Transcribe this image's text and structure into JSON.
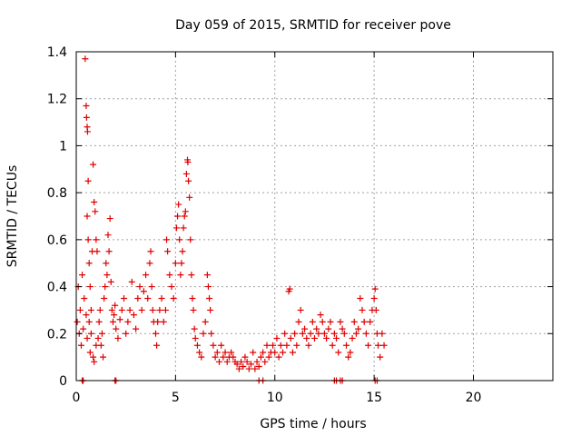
{
  "chart_data": {
    "type": "scatter",
    "title": "Day 059 of 2015, SRMTID for receiver pove",
    "xlabel": "GPS time / hours",
    "ylabel": "SRMTID / TECUs",
    "xlim": [
      0,
      24
    ],
    "ylim": [
      0,
      1.4
    ],
    "xticks": [
      0,
      5,
      10,
      15,
      20
    ],
    "yticks": [
      0,
      0.2,
      0.4,
      0.6,
      0.8,
      1,
      1.2,
      1.4
    ],
    "grid": true,
    "marker": "+",
    "series_color": "#e00000",
    "points": [
      [
        0.05,
        0.25
      ],
      [
        0.1,
        0.4
      ],
      [
        0.15,
        0.2
      ],
      [
        0.2,
        0.3
      ],
      [
        0.25,
        0.15
      ],
      [
        0.3,
        0.45
      ],
      [
        0.35,
        0.22
      ],
      [
        0.4,
        0.35
      ],
      [
        0.45,
        1.37
      ],
      [
        0.5,
        1.17
      ],
      [
        0.52,
        1.12
      ],
      [
        0.55,
        1.08
      ],
      [
        0.57,
        1.06
      ],
      [
        0.6,
        0.85
      ],
      [
        0.55,
        0.7
      ],
      [
        0.6,
        0.6
      ],
      [
        0.65,
        0.5
      ],
      [
        0.7,
        0.4
      ],
      [
        0.75,
        0.3
      ],
      [
        0.8,
        0.55
      ],
      [
        0.85,
        0.92
      ],
      [
        0.9,
        0.76
      ],
      [
        0.95,
        0.72
      ],
      [
        1.0,
        0.6
      ],
      [
        1.05,
        0.55
      ],
      [
        0.5,
        0.28
      ],
      [
        0.55,
        0.18
      ],
      [
        0.65,
        0.25
      ],
      [
        0.7,
        0.12
      ],
      [
        0.75,
        0.2
      ],
      [
        0.85,
        0.1
      ],
      [
        0.9,
        0.08
      ],
      [
        1.0,
        0.15
      ],
      [
        1.1,
        0.18
      ],
      [
        1.15,
        0.25
      ],
      [
        1.2,
        0.3
      ],
      [
        1.25,
        0.15
      ],
      [
        1.3,
        0.2
      ],
      [
        1.35,
        0.1
      ],
      [
        1.4,
        0.35
      ],
      [
        1.45,
        0.4
      ],
      [
        1.5,
        0.5
      ],
      [
        1.55,
        0.45
      ],
      [
        1.6,
        0.62
      ],
      [
        1.65,
        0.55
      ],
      [
        1.7,
        0.69
      ],
      [
        1.75,
        0.42
      ],
      [
        1.8,
        0.3
      ],
      [
        1.85,
        0.25
      ],
      [
        1.9,
        0.28
      ],
      [
        1.95,
        0.32
      ],
      [
        2.0,
        0.22
      ],
      [
        2.1,
        0.18
      ],
      [
        2.2,
        0.26
      ],
      [
        2.3,
        0.3
      ],
      [
        2.4,
        0.35
      ],
      [
        2.5,
        0.2
      ],
      [
        2.6,
        0.25
      ],
      [
        2.7,
        0.3
      ],
      [
        2.8,
        0.42
      ],
      [
        2.9,
        0.28
      ],
      [
        3.0,
        0.22
      ],
      [
        3.1,
        0.35
      ],
      [
        3.2,
        0.4
      ],
      [
        3.3,
        0.3
      ],
      [
        3.4,
        0.38
      ],
      [
        3.5,
        0.45
      ],
      [
        3.6,
        0.35
      ],
      [
        3.7,
        0.5
      ],
      [
        3.75,
        0.55
      ],
      [
        3.8,
        0.4
      ],
      [
        3.85,
        0.3
      ],
      [
        3.9,
        0.25
      ],
      [
        4.0,
        0.2
      ],
      [
        4.05,
        0.15
      ],
      [
        4.1,
        0.25
      ],
      [
        4.2,
        0.3
      ],
      [
        4.3,
        0.35
      ],
      [
        4.4,
        0.25
      ],
      [
        4.5,
        0.3
      ],
      [
        4.55,
        0.6
      ],
      [
        4.6,
        0.55
      ],
      [
        4.7,
        0.45
      ],
      [
        4.8,
        0.4
      ],
      [
        4.9,
        0.35
      ],
      [
        5.0,
        0.5
      ],
      [
        5.05,
        0.65
      ],
      [
        5.1,
        0.7
      ],
      [
        5.15,
        0.75
      ],
      [
        5.2,
        0.6
      ],
      [
        5.25,
        0.45
      ],
      [
        5.3,
        0.5
      ],
      [
        5.35,
        0.55
      ],
      [
        5.4,
        0.65
      ],
      [
        5.45,
        0.7
      ],
      [
        5.5,
        0.72
      ],
      [
        5.55,
        0.88
      ],
      [
        5.6,
        0.94
      ],
      [
        5.62,
        0.93
      ],
      [
        5.65,
        0.85
      ],
      [
        5.7,
        0.78
      ],
      [
        5.75,
        0.6
      ],
      [
        5.8,
        0.45
      ],
      [
        5.85,
        0.35
      ],
      [
        5.9,
        0.3
      ],
      [
        5.95,
        0.22
      ],
      [
        6.0,
        0.18
      ],
      [
        6.1,
        0.15
      ],
      [
        6.2,
        0.12
      ],
      [
        6.3,
        0.1
      ],
      [
        6.4,
        0.2
      ],
      [
        6.5,
        0.25
      ],
      [
        6.6,
        0.45
      ],
      [
        6.65,
        0.4
      ],
      [
        6.7,
        0.35
      ],
      [
        6.75,
        0.3
      ],
      [
        6.8,
        0.2
      ],
      [
        6.9,
        0.15
      ],
      [
        7.0,
        0.1
      ],
      [
        7.1,
        0.12
      ],
      [
        7.2,
        0.08
      ],
      [
        7.3,
        0.15
      ],
      [
        7.4,
        0.1
      ],
      [
        7.5,
        0.12
      ],
      [
        7.6,
        0.08
      ],
      [
        7.7,
        0.1
      ],
      [
        7.8,
        0.12
      ],
      [
        7.9,
        0.1
      ],
      [
        8.0,
        0.08
      ],
      [
        8.1,
        0.07
      ],
      [
        8.2,
        0.05
      ],
      [
        8.3,
        0.08
      ],
      [
        8.4,
        0.06
      ],
      [
        8.5,
        0.1
      ],
      [
        8.6,
        0.08
      ],
      [
        8.7,
        0.05
      ],
      [
        8.8,
        0.07
      ],
      [
        8.9,
        0.12
      ],
      [
        9.0,
        0.05
      ],
      [
        9.1,
        0.08
      ],
      [
        9.2,
        0.06
      ],
      [
        9.3,
        0.1
      ],
      [
        9.4,
        0.12
      ],
      [
        9.5,
        0.08
      ],
      [
        9.6,
        0.15
      ],
      [
        9.7,
        0.1
      ],
      [
        9.8,
        0.12
      ],
      [
        9.9,
        0.15
      ],
      [
        10.0,
        0.12
      ],
      [
        10.1,
        0.18
      ],
      [
        10.2,
        0.1
      ],
      [
        10.3,
        0.15
      ],
      [
        10.4,
        0.12
      ],
      [
        10.5,
        0.2
      ],
      [
        10.6,
        0.15
      ],
      [
        10.7,
        0.38
      ],
      [
        10.75,
        0.39
      ],
      [
        10.8,
        0.18
      ],
      [
        10.9,
        0.12
      ],
      [
        11.0,
        0.2
      ],
      [
        11.1,
        0.15
      ],
      [
        11.2,
        0.25
      ],
      [
        11.3,
        0.3
      ],
      [
        11.4,
        0.2
      ],
      [
        11.5,
        0.22
      ],
      [
        11.6,
        0.18
      ],
      [
        11.7,
        0.15
      ],
      [
        11.8,
        0.2
      ],
      [
        11.9,
        0.25
      ],
      [
        12.0,
        0.18
      ],
      [
        12.1,
        0.22
      ],
      [
        12.2,
        0.2
      ],
      [
        12.3,
        0.28
      ],
      [
        12.4,
        0.25
      ],
      [
        12.5,
        0.2
      ],
      [
        12.6,
        0.18
      ],
      [
        12.7,
        0.22
      ],
      [
        12.8,
        0.25
      ],
      [
        12.9,
        0.15
      ],
      [
        13.0,
        0.2
      ],
      [
        13.1,
        0.18
      ],
      [
        13.2,
        0.12
      ],
      [
        13.3,
        0.25
      ],
      [
        13.4,
        0.22
      ],
      [
        13.5,
        0.2
      ],
      [
        13.6,
        0.15
      ],
      [
        13.7,
        0.1
      ],
      [
        13.8,
        0.12
      ],
      [
        13.9,
        0.18
      ],
      [
        14.0,
        0.25
      ],
      [
        14.1,
        0.2
      ],
      [
        14.2,
        0.22
      ],
      [
        14.3,
        0.35
      ],
      [
        14.4,
        0.3
      ],
      [
        14.5,
        0.25
      ],
      [
        14.6,
        0.2
      ],
      [
        14.7,
        0.15
      ],
      [
        14.8,
        0.25
      ],
      [
        14.9,
        0.3
      ],
      [
        15.0,
        0.35
      ],
      [
        15.05,
        0.39
      ],
      [
        15.1,
        0.3
      ],
      [
        15.15,
        0.2
      ],
      [
        15.2,
        0.15
      ],
      [
        15.3,
        0.1
      ],
      [
        15.4,
        0.2
      ],
      [
        15.5,
        0.15
      ],
      [
        0.3,
        0.0
      ],
      [
        0.35,
        0.0
      ],
      [
        1.95,
        0.0
      ],
      [
        2.0,
        0.0
      ],
      [
        9.2,
        0.0
      ],
      [
        9.4,
        0.0
      ],
      [
        13.0,
        0.0
      ],
      [
        13.1,
        0.0
      ],
      [
        13.3,
        0.0
      ],
      [
        13.4,
        0.0
      ],
      [
        15.05,
        0.0
      ],
      [
        15.15,
        0.0
      ]
    ]
  }
}
